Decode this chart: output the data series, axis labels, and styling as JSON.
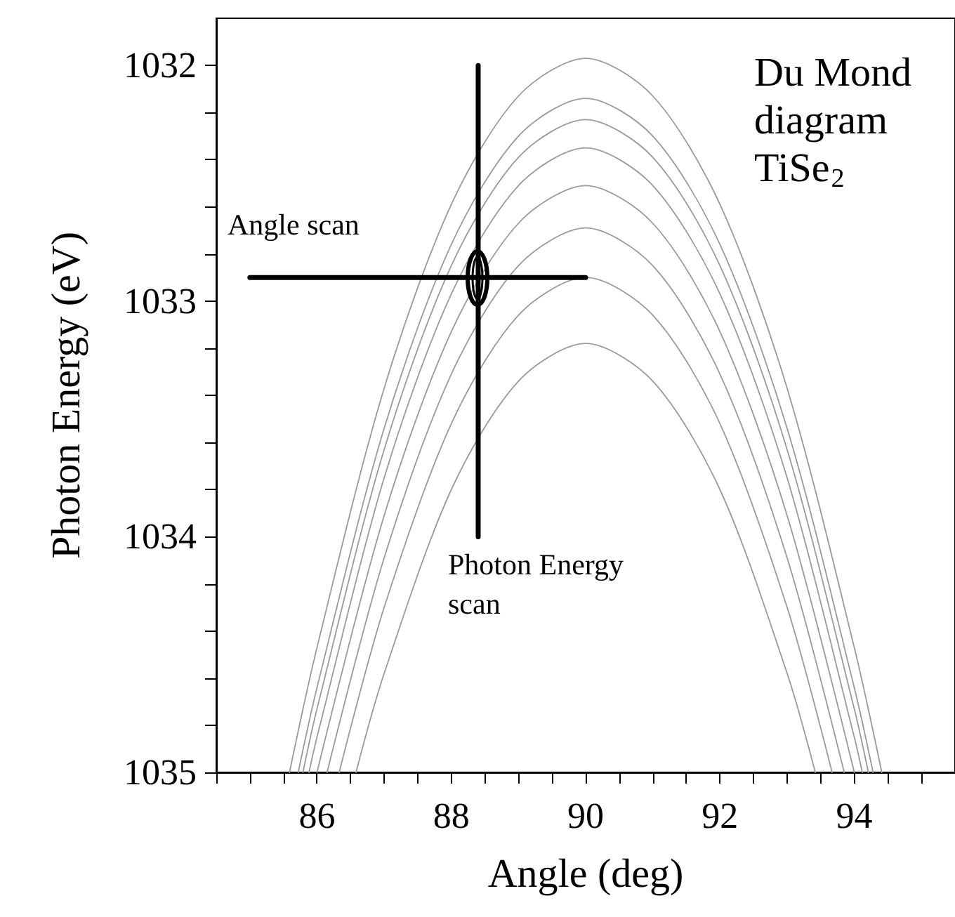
{
  "chart_data": {
    "type": "line",
    "title": "Du Mond diagram TiSe$_{2}$",
    "xlabel": "Angle (deg)",
    "ylabel": "Photon Energy (eV)",
    "xlim": [
      84.5,
      95.5
    ],
    "ylim": [
      1035,
      1031.8
    ],
    "xticks": [
      {
        "value": 84.5,
        "label": null
      },
      {
        "value": 85,
        "label": null
      },
      {
        "value": 85.5,
        "label": null
      },
      86,
      {
        "value": 86.5,
        "label": null
      },
      {
        "value": 87,
        "label": null
      },
      {
        "value": 87.5,
        "label": null
      },
      88,
      {
        "value": 88.5,
        "label": null
      },
      {
        "value": 89,
        "label": null
      },
      {
        "value": 89.5,
        "label": null
      },
      90,
      {
        "value": 90.5,
        "label": null
      },
      {
        "value": 91,
        "label": null
      },
      {
        "value": 91.5,
        "label": null
      },
      92,
      {
        "value": 92.5,
        "label": null
      },
      {
        "value": 93,
        "label": null
      },
      {
        "value": 93.5,
        "label": null
      },
      94,
      {
        "value": 94.5,
        "label": null
      },
      {
        "value": 95,
        "label": null
      }
    ],
    "yticks": [
      1032,
      {
        "value": 1032.2,
        "label": null
      },
      {
        "value": 1032.4,
        "label": null
      },
      {
        "value": 1032.6,
        "label": null
      },
      {
        "value": 1032.8,
        "label": null
      },
      1033,
      {
        "value": 1033.2,
        "label": null
      },
      {
        "value": 1033.4,
        "label": null
      },
      {
        "value": 1033.6,
        "label": null
      },
      {
        "value": 1033.8,
        "label": null
      },
      1034,
      {
        "value": 1034.2,
        "label": null
      },
      {
        "value": 1034.4,
        "label": null
      },
      {
        "value": 1034.6,
        "label": null
      },
      {
        "value": 1034.8,
        "label": null
      },
      1035
    ],
    "grid": false,
    "marker": "none",
    "line_style": "solid",
    "series": [
      {
        "color": "#9a9a9a",
        "x": [
          85.59,
          86,
          87,
          88,
          89,
          90,
          91,
          92,
          93,
          94,
          94.41
        ],
        "values": [
          1035,
          1034.47,
          1033.37,
          1032.59,
          1032.13,
          1031.97,
          1032.13,
          1032.59,
          1033.37,
          1034.47,
          1035
        ]
      },
      {
        "color": "#9a9a9a",
        "x": [
          85.72,
          86,
          87,
          88,
          89,
          90,
          91,
          92,
          93,
          94,
          94.28
        ],
        "values": [
          1035,
          1034.64,
          1033.54,
          1032.76,
          1032.3,
          1032.14,
          1032.3,
          1032.76,
          1033.54,
          1034.64,
          1035
        ]
      },
      {
        "color": "#9a9a9a",
        "x": [
          85.79,
          86,
          87,
          88,
          89,
          90,
          91,
          92,
          93,
          94,
          94.21
        ],
        "values": [
          1035,
          1034.73,
          1033.63,
          1032.85,
          1032.39,
          1032.23,
          1032.39,
          1032.85,
          1033.63,
          1034.73,
          1035
        ]
      },
      {
        "color": "#9a9a9a",
        "x": [
          85.88,
          86,
          87,
          88,
          89,
          90,
          91,
          92,
          93,
          94,
          94.12
        ],
        "values": [
          1035,
          1034.85,
          1033.75,
          1032.97,
          1032.51,
          1032.35,
          1032.51,
          1032.97,
          1033.75,
          1034.85,
          1035
        ]
      },
      {
        "color": "#9a9a9a",
        "x": [
          86,
          87,
          88,
          89,
          90,
          91,
          92,
          93,
          94
        ],
        "values": [
          1035,
          1033.91,
          1033.13,
          1032.67,
          1032.51,
          1032.67,
          1033.13,
          1033.91,
          1035
        ]
      },
      {
        "color": "#9a9a9a",
        "x": [
          86.15,
          87,
          88,
          89,
          90,
          91,
          92,
          93,
          93.85
        ],
        "values": [
          1035,
          1034.09,
          1033.31,
          1032.85,
          1032.69,
          1032.85,
          1033.31,
          1034.09,
          1035
        ]
      },
      {
        "color": "#9a9a9a",
        "x": [
          86.33,
          87,
          88,
          89,
          90,
          91,
          92,
          93,
          93.67
        ],
        "values": [
          1035,
          1034.3,
          1033.52,
          1033.06,
          1032.9,
          1033.06,
          1033.52,
          1034.3,
          1035
        ]
      },
      {
        "color": "#9a9a9a",
        "x": [
          86.58,
          87,
          88,
          89,
          90,
          91,
          92,
          93,
          93.42
        ],
        "values": [
          1035,
          1034.58,
          1033.8,
          1033.34,
          1033.18,
          1033.34,
          1033.8,
          1034.58,
          1035
        ]
      },
      {
        "color": "#000000",
        "x": [
          85,
          90
        ],
        "values": [
          1032.9,
          1032.9
        ]
      },
      {
        "color": "#000000",
        "x": [
          88.4,
          88.4
        ],
        "values": [
          1032,
          1034
        ]
      }
    ],
    "annotations": [
      "Angle scan",
      "Photon Energy\nscan"
    ]
  }
}
